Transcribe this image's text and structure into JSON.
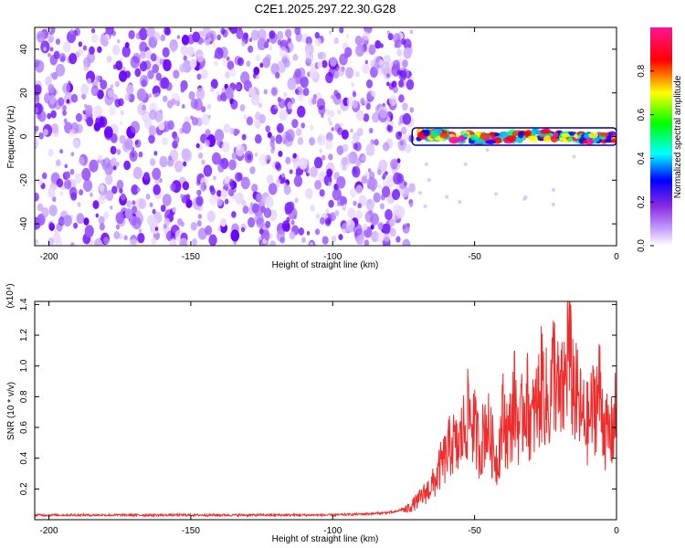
{
  "title": "C2E1.2025.297.22.30.G28",
  "chart_data": [
    {
      "type": "heatmap",
      "xlabel": "Height of straight line (km)",
      "ylabel": "Frequency (Hz)",
      "xlim": [
        -205,
        0
      ],
      "ylim": [
        -50,
        50
      ],
      "xticks": [
        -200,
        -150,
        -100,
        -50,
        0
      ],
      "yticks": [
        -40,
        -20,
        0,
        20,
        40
      ],
      "colorbar": {
        "label": "Normalized spectral amplitude",
        "range": [
          0,
          1
        ],
        "ticks": [
          0.0,
          0.2,
          0.4,
          0.6,
          0.8
        ],
        "colors": [
          "#ffffff",
          "#9b30ff",
          "#0000ff",
          "#00ffff",
          "#00ff00",
          "#ffff00",
          "#ff0000",
          "#ff00ff"
        ]
      },
      "regions": [
        {
          "x_start": -205,
          "x_end": -72,
          "freq_range": [
            -50,
            50
          ],
          "amplitude": "low (~0.05-0.2)"
        },
        {
          "x_start": -72,
          "x_end": 0,
          "center_freq": 0,
          "band_width": 4,
          "amplitude": "high (~0.5-1.0)"
        }
      ]
    },
    {
      "type": "line",
      "xlabel": "Height of straight line (km)",
      "ylabel": "SNR (10 * v/v)",
      "y_multiplier": "(x10⁴)",
      "xlim": [
        -205,
        0
      ],
      "ylim": [
        0,
        1.42
      ],
      "xticks": [
        -200,
        -150,
        -100,
        -50,
        0
      ],
      "yticks": [
        0.2,
        0.4,
        0.6,
        0.8,
        1.0,
        1.2,
        1.4
      ],
      "line_color": "#ee2c2c",
      "series": [
        {
          "x": [
            -205,
            -180,
            -150,
            -120,
            -100,
            -85,
            -78,
            -74,
            -70,
            -67,
            -64,
            -62,
            -60,
            -58,
            -56,
            -54,
            -52,
            -50,
            -48,
            -46,
            -44,
            -42,
            -40,
            -38,
            -36,
            -34,
            -32,
            -30,
            -28,
            -26,
            -24,
            -22,
            -20,
            -18,
            -17,
            -16,
            -14,
            -12,
            -10,
            -8,
            -6,
            -4,
            -2,
            0
          ],
          "values": [
            0.03,
            0.03,
            0.03,
            0.03,
            0.03,
            0.04,
            0.05,
            0.08,
            0.15,
            0.22,
            0.3,
            0.42,
            0.5,
            0.62,
            0.55,
            0.7,
            0.85,
            0.72,
            0.55,
            0.78,
            0.6,
            0.45,
            0.82,
            0.65,
            0.95,
            0.7,
            1.0,
            0.75,
            0.9,
            1.1,
            0.85,
            1.22,
            0.9,
            1.1,
            1.42,
            1.15,
            0.95,
            0.8,
            0.75,
            0.9,
            1.02,
            0.7,
            0.65,
            0.85
          ]
        }
      ]
    }
  ]
}
